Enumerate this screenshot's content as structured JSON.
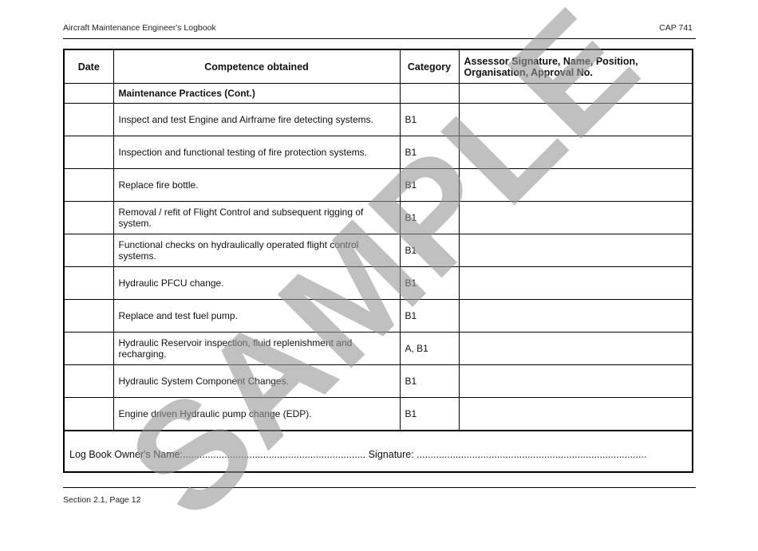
{
  "header": {
    "title": "Aircraft Maintenance Engineer's Logbook",
    "doc_ref": "CAP 741"
  },
  "table": {
    "columns": [
      "Date",
      "Competence obtained",
      "Category",
      "Assessor Signature, Name, Position, Organisation, Approval No."
    ],
    "section": "Maintenance Practices (Cont.)",
    "rows": [
      {
        "competence": "Inspect and test Engine and Airframe fire detecting systems.",
        "category": "B1"
      },
      {
        "competence": "Inspection and functional testing of fire protection systems.",
        "category": "B1"
      },
      {
        "competence": "Replace fire bottle.",
        "category": "B1"
      },
      {
        "competence": "Removal / refit of Flight Control and subsequent rigging of system.",
        "category": "B1"
      },
      {
        "competence": "Functional checks on hydraulically operated flight control systems.",
        "category": "B1"
      },
      {
        "competence": "Hydraulic PFCU change.",
        "category": "B1"
      },
      {
        "competence": "Replace and test fuel pump.",
        "category": "B1"
      },
      {
        "competence": "Hydraulic Reservoir inspection, fluid replenishment and recharging.",
        "category": "A, B1"
      },
      {
        "competence": "Hydraulic System Component Changes.",
        "category": "B1"
      },
      {
        "competence": "Engine driven Hydraulic pump change (EDP).",
        "category": "B1"
      }
    ],
    "footer": "Log Book Owner's Name:.................................................................. Signature: ..................................................................................."
  },
  "watermark": "SAMPLE",
  "page_footer": "Section 2.1, Page 12"
}
